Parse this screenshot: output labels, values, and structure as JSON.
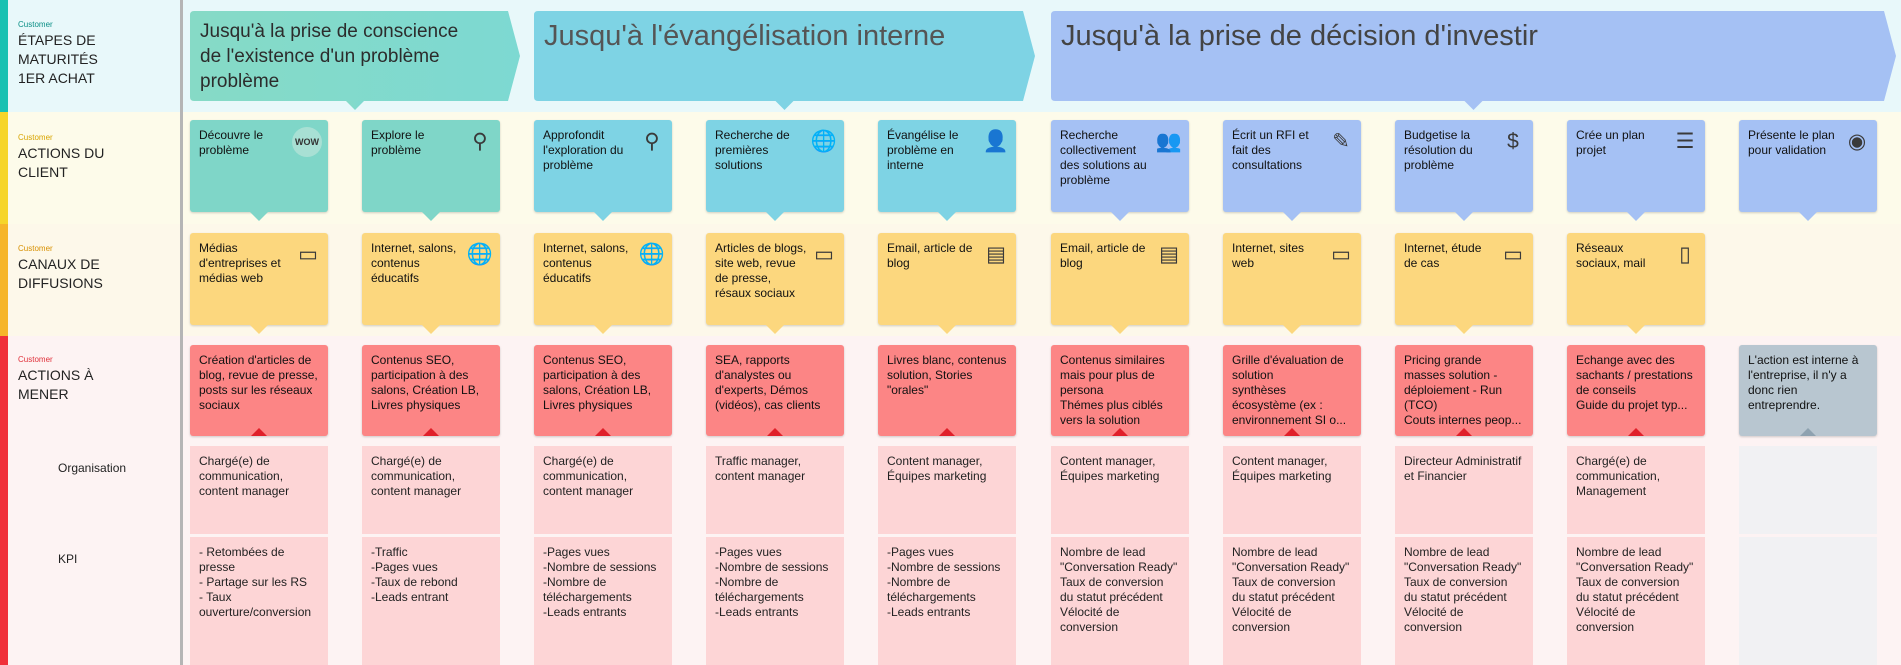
{
  "colors": {
    "stage_band_bg": "#e8f8fa",
    "action_band_bg": "#fdfbea",
    "channel_band_bg": "#fdf8ea",
    "todo_band_bg": "#fdf3f3",
    "accent_stage": "#19c1b2",
    "accent_action": "#f6d52a",
    "accent_channel": "#f6b52a",
    "accent_todo": "#f0303a",
    "teal": "#7fd6c8",
    "cyan": "#7ed3e4",
    "blue": "#a5c1f4",
    "yellow": "#fcd77e",
    "red": "#fc8585",
    "grey": "#b8c6d0"
  },
  "rows": [
    {
      "small": "Customer",
      "title": "ÉTAPES DE\nMATURITÉS\n1ER ACHAT",
      "small_color": "#0a8f86"
    },
    {
      "small": "Customer",
      "title": "ACTIONS DU\nCLIENT",
      "small_color": "#d8a400"
    },
    {
      "small": "Customer",
      "title": "CANAUX DE\nDIFFUSIONS",
      "small_color": "#d89000"
    },
    {
      "small": "Customer",
      "title": "ACTIONS À\nMENER",
      "small_color": "#e0303a"
    }
  ],
  "stages": [
    {
      "text": "Jusqu'à la prise de conscience de l'existence d'un problème problème",
      "color": "teal"
    },
    {
      "text": "Jusqu'à l'évangélisation interne",
      "color": "cyan"
    },
    {
      "text": "Jusqu'à la prise de décision d'investir",
      "color": "blue"
    }
  ],
  "client_actions": [
    {
      "text": "Découvre le problème",
      "icon": "wow-badge-icon",
      "glyph": "WOW",
      "color": "teal"
    },
    {
      "text": "Explore le problème",
      "icon": "search-icon",
      "glyph": "⚲",
      "color": "teal"
    },
    {
      "text": "Approfondit l'exploration du problème",
      "icon": "search-icon",
      "glyph": "⚲",
      "color": "cyan"
    },
    {
      "text": "Recherche de premières solutions",
      "icon": "globe-icon",
      "glyph": "🌐",
      "color": "cyan"
    },
    {
      "text": "Évangélise le problème en interne",
      "icon": "person-voice-icon",
      "glyph": "👤",
      "color": "cyan"
    },
    {
      "text": "Recherche collectivement des solutions au problème",
      "icon": "group-icon",
      "glyph": "👥",
      "color": "blue"
    },
    {
      "text": "Écrit un RFI et fait des consultations",
      "icon": "pencil-icon",
      "glyph": "✎",
      "color": "blue"
    },
    {
      "text": "Budgetise la résolution du problème",
      "icon": "dollar-icon",
      "glyph": "$",
      "color": "blue"
    },
    {
      "text": "Crée un plan projet",
      "icon": "list-icon",
      "glyph": "☰",
      "color": "blue"
    },
    {
      "text": "Présente le plan pour validation",
      "icon": "eye-icon",
      "glyph": "◉",
      "color": "blue"
    }
  ],
  "channels": [
    {
      "text": "Médias d'entreprises et médias web",
      "icon": "monitor-icon",
      "glyph": "▭"
    },
    {
      "text": "Internet, salons, contenus éducatifs",
      "icon": "globe-icon",
      "glyph": "🌐"
    },
    {
      "text": "Internet, salons, contenus éducatifs",
      "icon": "globe-icon",
      "glyph": "🌐"
    },
    {
      "text": "Articles de blogs, site web, revue de presse, résaux sociaux",
      "icon": "monitor-icon",
      "glyph": "▭"
    },
    {
      "text": "Email, article de blog",
      "icon": "document-icon",
      "glyph": "▤"
    },
    {
      "text": "Email, article de blog",
      "icon": "document-icon",
      "glyph": "▤"
    },
    {
      "text": "Internet, sites web",
      "icon": "monitor-icon",
      "glyph": "▭"
    },
    {
      "text": "Internet, étude de cas",
      "icon": "monitor-icon",
      "glyph": "▭"
    },
    {
      "text": "Réseaux sociaux, mail",
      "icon": "phone-icon",
      "glyph": "▯"
    }
  ],
  "todo": [
    {
      "text": "Création d'articles de blog, revue de presse, posts sur les réseaux sociaux",
      "color": "red"
    },
    {
      "text": "Contenus SEO, participation à des salons, Création LB, Livres physiques",
      "color": "red"
    },
    {
      "text": "Contenus SEO, participation à des salons, Création LB, Livres physiques",
      "color": "red"
    },
    {
      "text": "SEA, rapports d'analystes ou d'experts, Démos (vidéos), cas clients",
      "color": "red"
    },
    {
      "text": "Livres blanc, contenus solution, Stories \"orales\"",
      "color": "red"
    },
    {
      "text": "Contenus similaires mais pour plus de persona\nThémes plus ciblés vers la solution",
      "color": "red"
    },
    {
      "text": "Grille d'évaluation de solution\nsynthèses écosystème (ex : environnement SI o...",
      "color": "red"
    },
    {
      "text": "Pricing grande masses solution - déploiement - Run (TCO)\nCouts internes peop...",
      "color": "red"
    },
    {
      "text": "Echange avec des sachants / prestations de conseils\nGuide du projet typ...",
      "color": "red"
    },
    {
      "text": "L'action est interne à l'entreprise, il n'y a donc rien entreprendre.",
      "color": "grey"
    }
  ],
  "organisation_label": "Organisation",
  "kpi_label": "KPI",
  "organisation": [
    "Chargé(e) de communication, content manager",
    "Chargé(e) de communication, content manager",
    "Chargé(e) de communication, content manager",
    "Traffic manager, content manager",
    "Content manager, Équipes marketing",
    "Content manager, Équipes marketing",
    "Content manager, Équipes marketing",
    "Directeur Administratif et Financier",
    "Chargé(e) de communication, Management",
    ""
  ],
  "kpi": [
    "- Retombées de presse\n- Partage sur les RS\n- Taux ouverture/conversion",
    "-Traffic\n-Pages vues\n-Taux de rebond\n-Leads entrant",
    "-Pages vues\n-Nombre de sessions\n-Nombre de téléchargements\n-Leads entrants",
    "-Pages vues\n-Nombre de sessions\n-Nombre de téléchargements\n-Leads entrants",
    "-Pages vues\n-Nombre de sessions\n-Nombre de téléchargements\n-Leads entrants",
    "Nombre de lead \"Conversation Ready\"\nTaux de conversion du statut précédent\nVélocité de conversion",
    "Nombre de lead \"Conversation Ready\"\nTaux de conversion du statut précédent\nVélocité de conversion",
    "Nombre de lead \"Conversation Ready\"\nTaux de conversion du statut précédent\nVélocité de conversion",
    "Nombre de lead \"Conversation Ready\"\nTaux de conversion du statut précédent\nVélocité de conversion",
    ""
  ]
}
